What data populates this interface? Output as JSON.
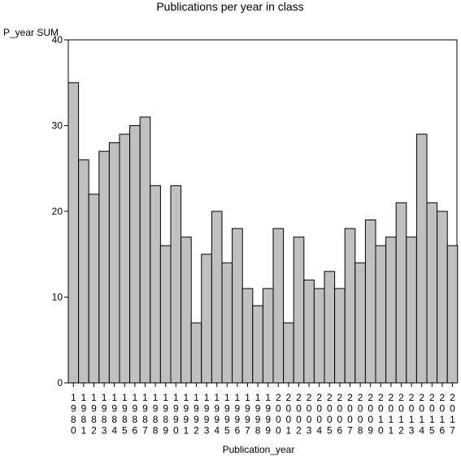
{
  "chart_data": {
    "type": "bar",
    "title": "Publications per year in class",
    "ylabel": "P_year SUM",
    "xlabel": "Publication_year",
    "ylim": [
      0,
      40
    ],
    "yticks": [
      0,
      10,
      20,
      30,
      40
    ],
    "grid": false,
    "bar_color": "#c0c0c0",
    "categories": [
      "1980",
      "1981",
      "1982",
      "1983",
      "1984",
      "1985",
      "1986",
      "1987",
      "1988",
      "1989",
      "1990",
      "1991",
      "1992",
      "1993",
      "1994",
      "1995",
      "1996",
      "1997",
      "1998",
      "1999",
      "2000",
      "2001",
      "2002",
      "2003",
      "2004",
      "2005",
      "2006",
      "2007",
      "2008",
      "2009",
      "2010",
      "2011",
      "2012",
      "2013",
      "2014",
      "2015",
      "2016",
      "2017"
    ],
    "values": [
      35,
      26,
      22,
      27,
      28,
      29,
      30,
      31,
      23,
      16,
      23,
      17,
      7,
      15,
      20,
      14,
      18,
      11,
      9,
      11,
      18,
      7,
      17,
      12,
      11,
      13,
      11,
      18,
      14,
      19,
      16,
      17,
      21,
      17,
      29,
      21,
      20,
      16
    ]
  }
}
